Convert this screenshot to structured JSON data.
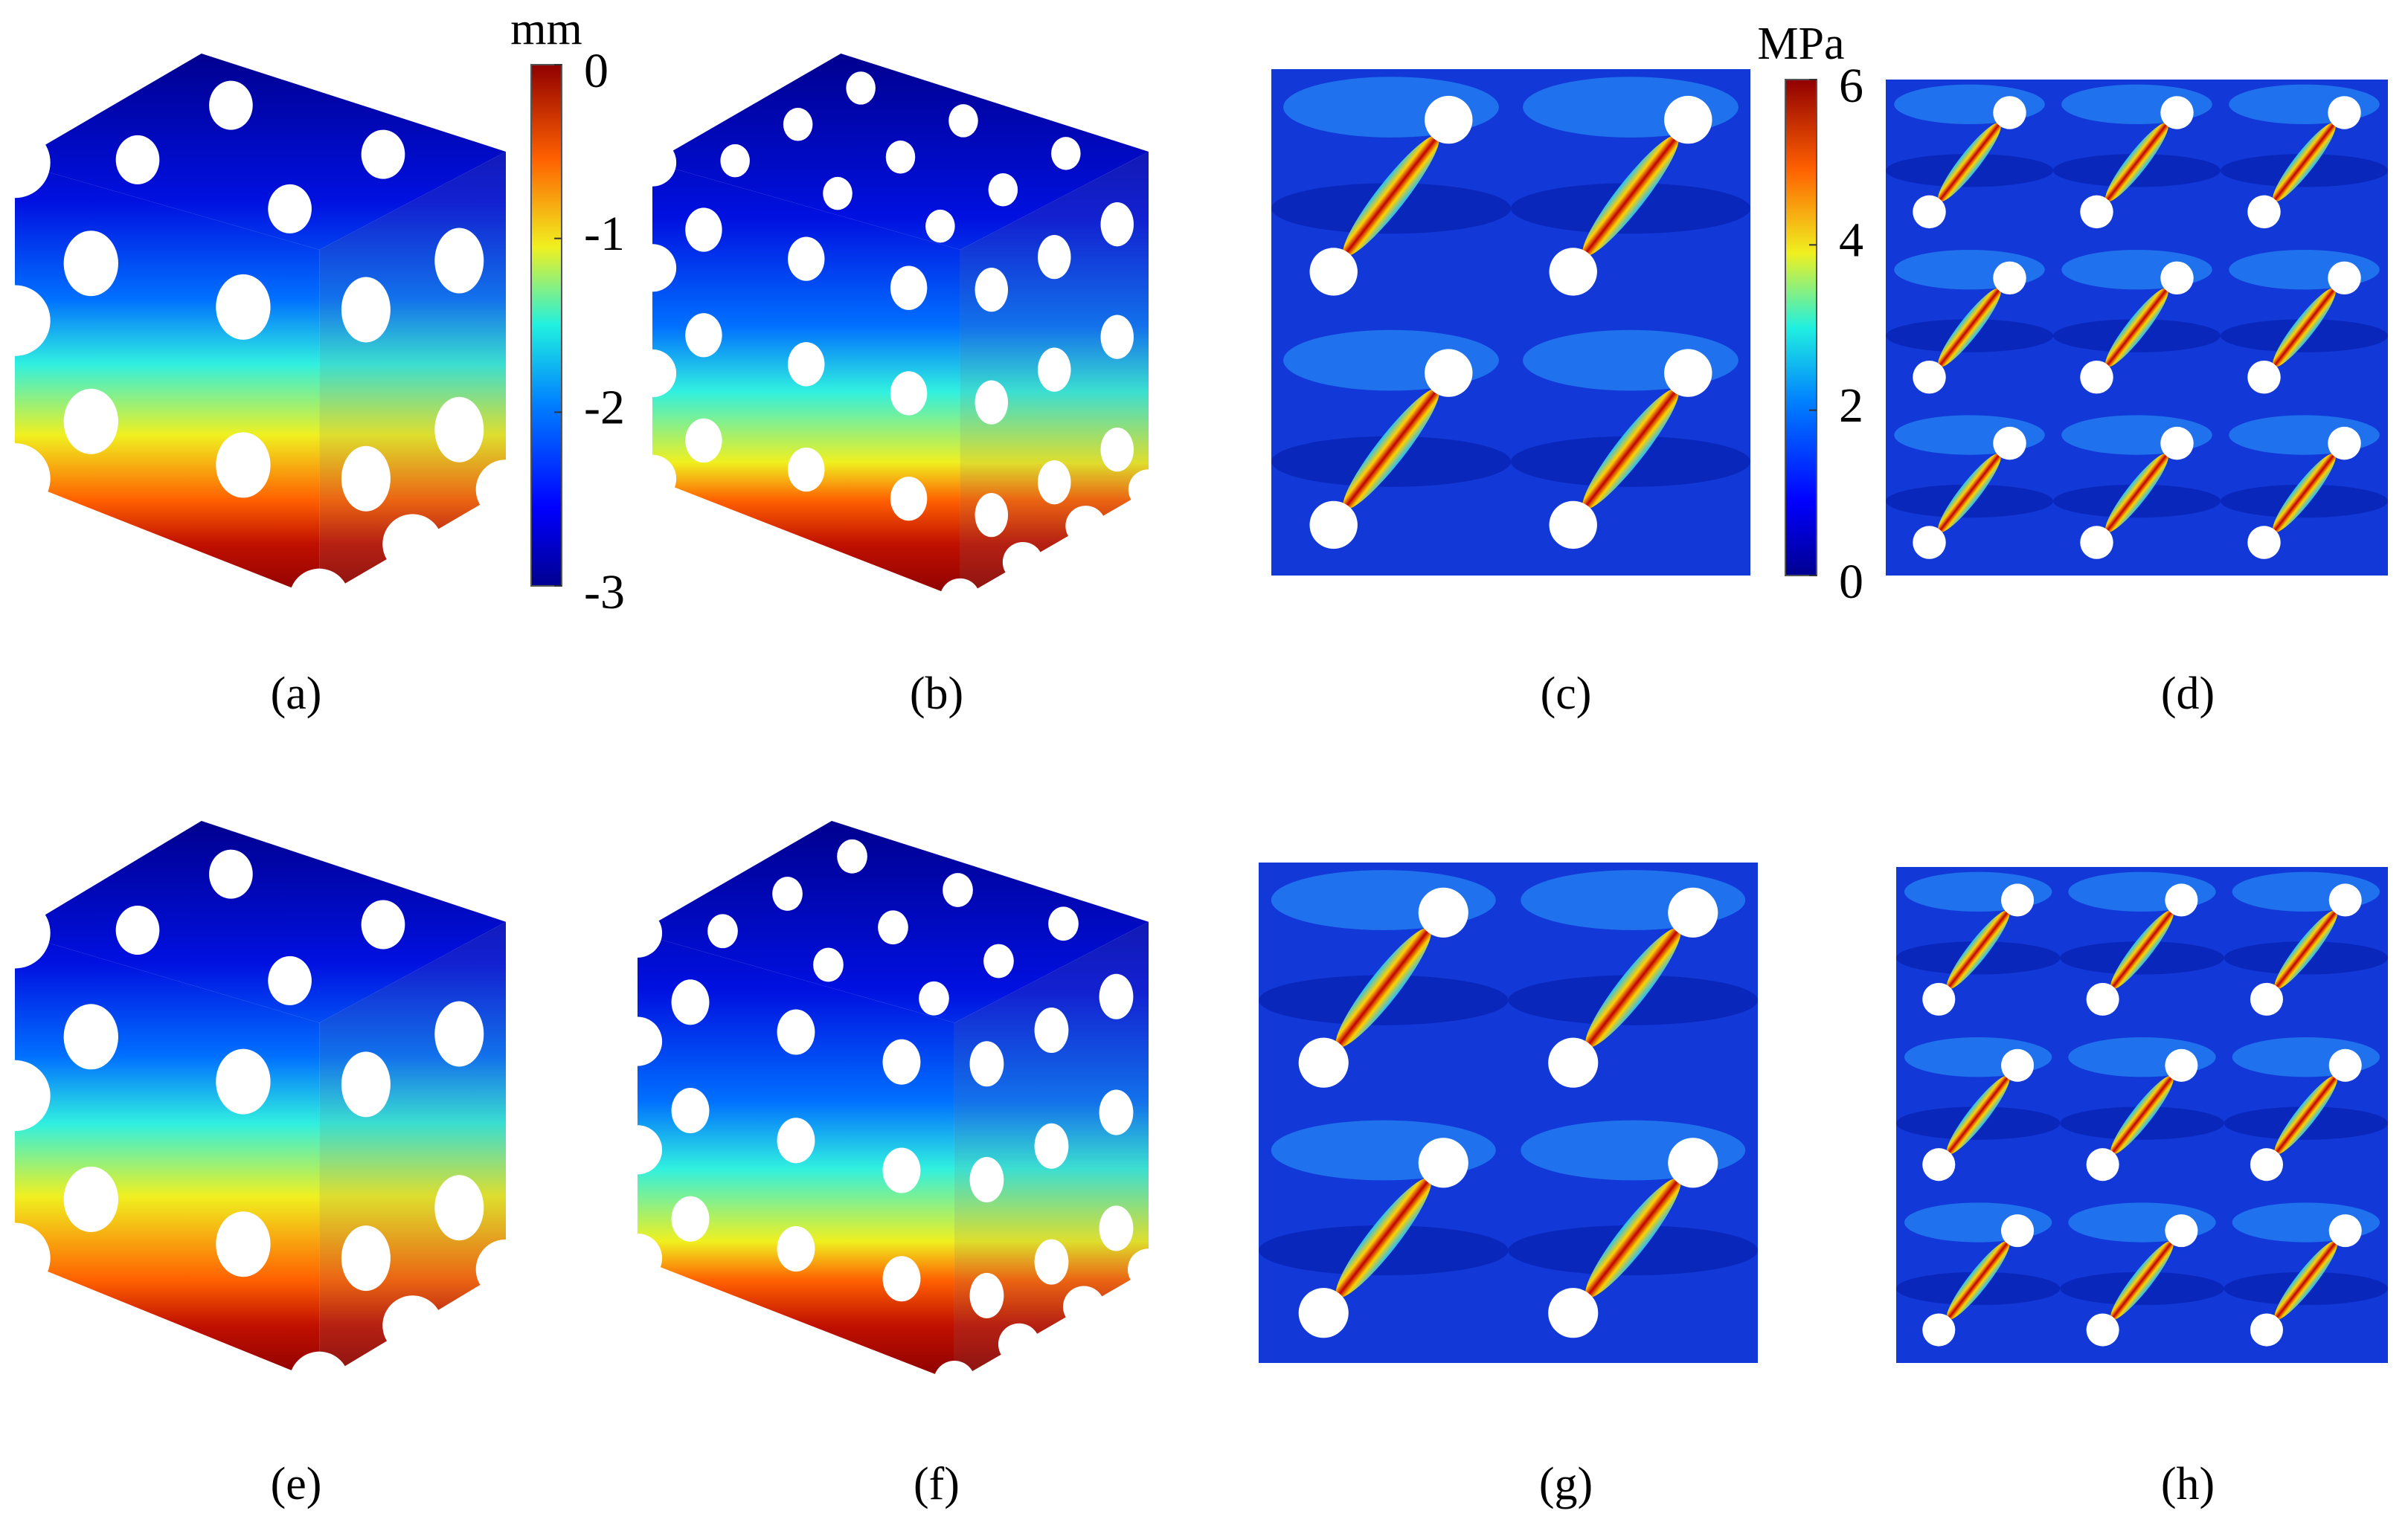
{
  "panels": [
    {
      "label": "(a)"
    },
    {
      "label": "(b)"
    },
    {
      "label": "(c)"
    },
    {
      "label": "(d)"
    },
    {
      "label": "(e)"
    },
    {
      "label": "(f)"
    },
    {
      "label": "(g)"
    },
    {
      "label": "(h)"
    }
  ],
  "colorbars": [
    {
      "unit": "mm",
      "range": [
        -3,
        0
      ],
      "ticks": [
        0,
        -1,
        -2,
        -3
      ]
    },
    {
      "unit": "MPa",
      "range": [
        0,
        6
      ],
      "ticks": [
        6,
        4,
        2,
        0
      ]
    }
  ]
}
